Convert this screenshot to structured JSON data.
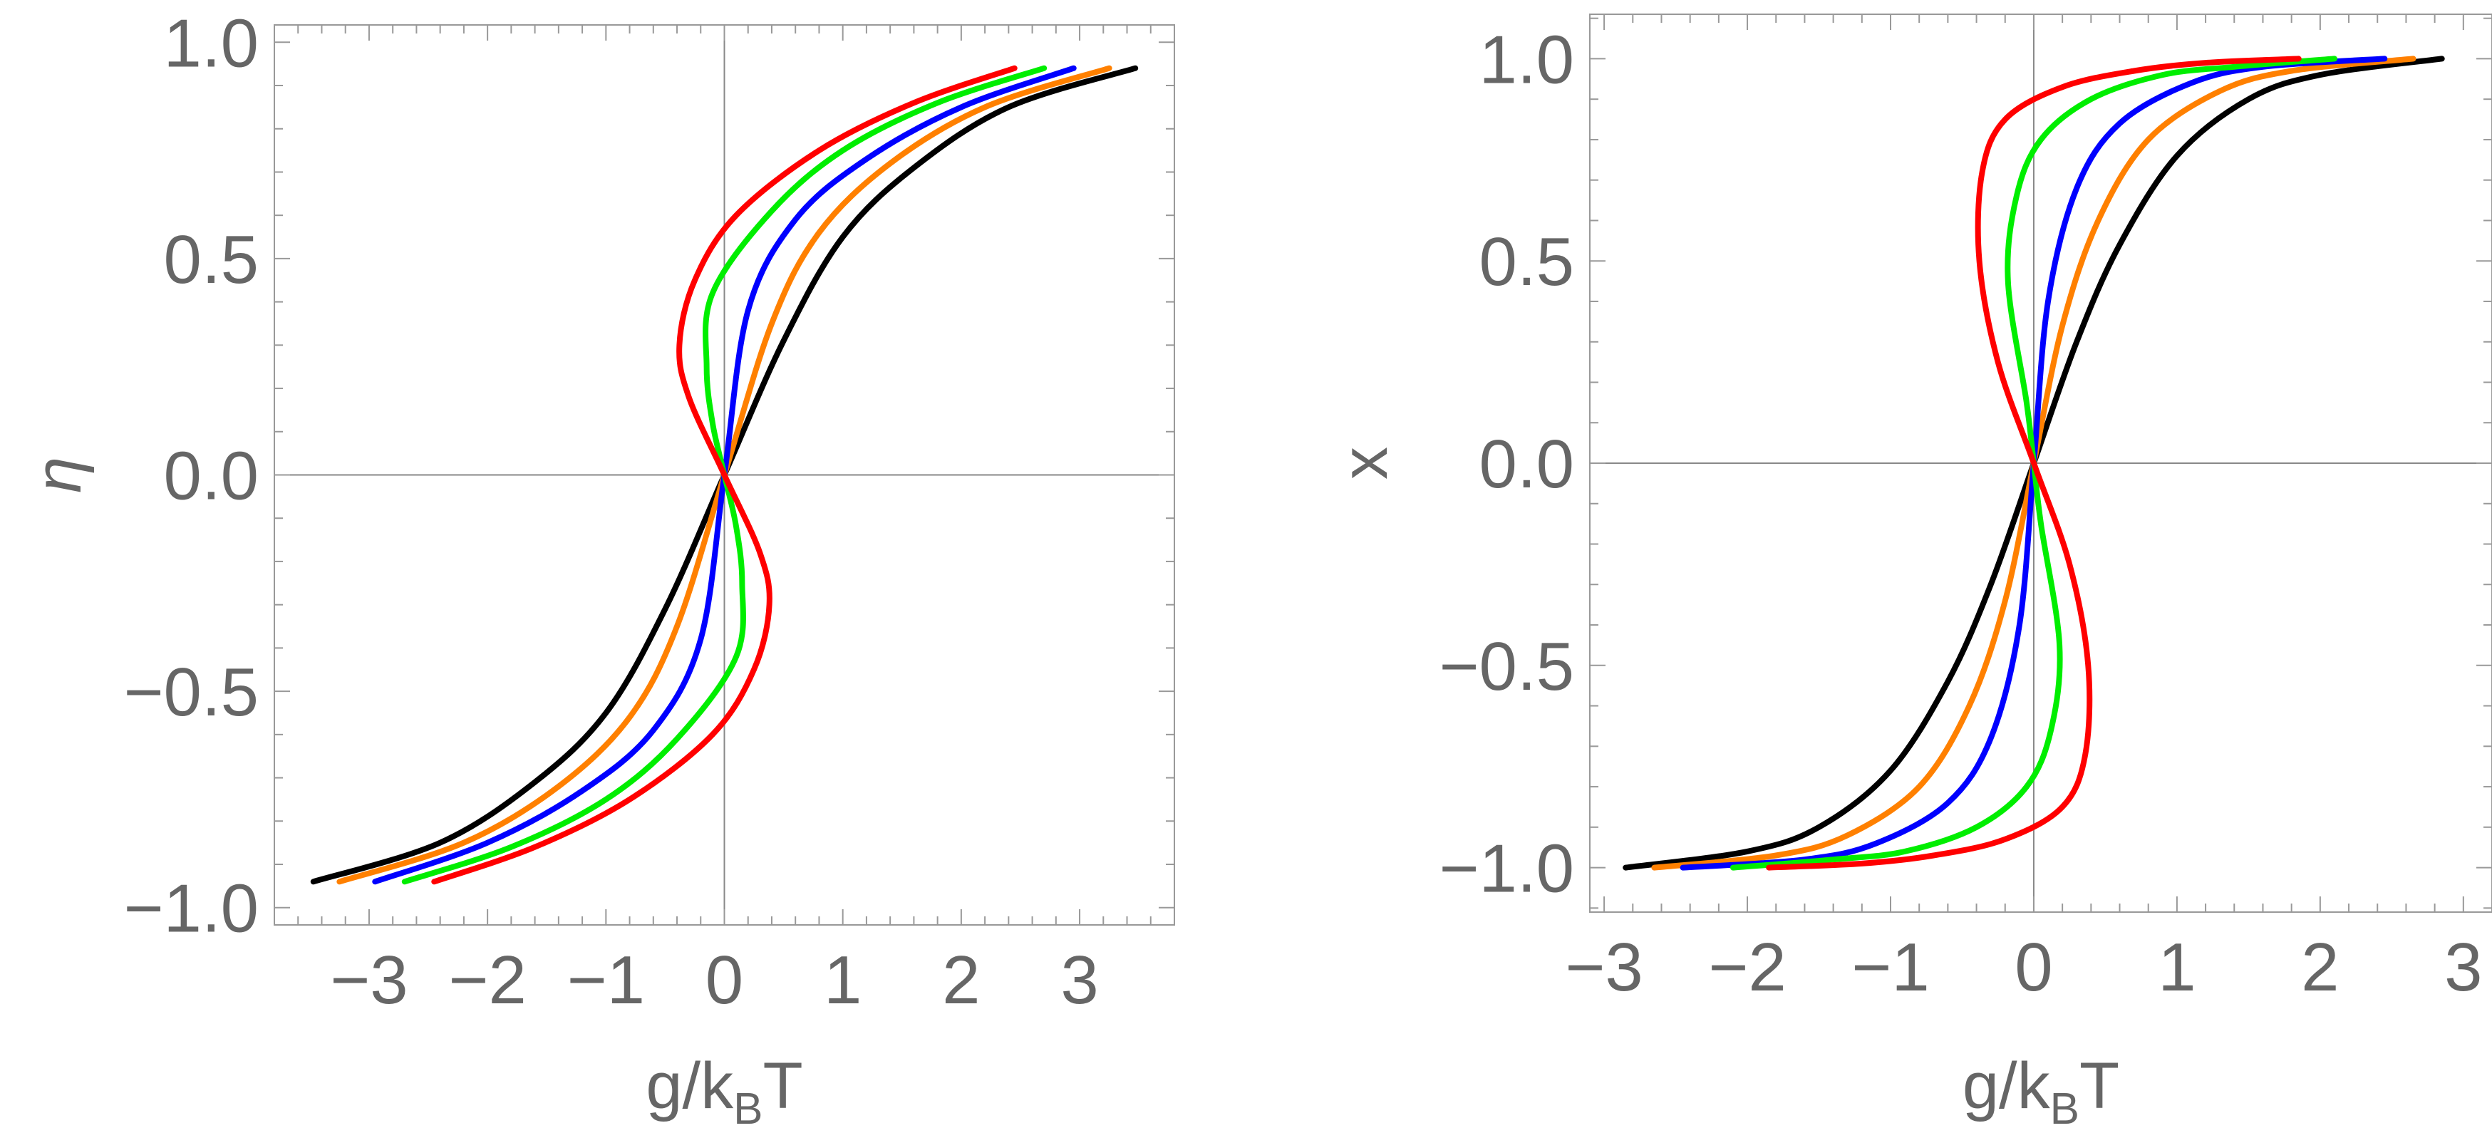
{
  "chart_data": [
    {
      "type": "line",
      "title": "",
      "xlabel": "g/k_BT",
      "ylabel": "η",
      "xlim": [
        -3.8,
        3.8
      ],
      "ylim": [
        -1.04,
        1.04
      ],
      "xticks": [
        "−3",
        "−2",
        "−1",
        "0",
        "1",
        "2",
        "3"
      ],
      "yticks": [
        "−1.0",
        "−0.5",
        "0.0",
        "0.5",
        "1.0"
      ],
      "grid": false,
      "legend": "none",
      "series": [
        {
          "color": "#000000",
          "x": [
            -3.47,
            -2.4,
            -1.6,
            -1.0,
            -0.5,
            0.0,
            0.5,
            1.0,
            1.6,
            2.4,
            3.47
          ],
          "y": [
            -0.94,
            -0.85,
            -0.71,
            -0.55,
            -0.31,
            0.0,
            0.31,
            0.55,
            0.71,
            0.85,
            0.94
          ]
        },
        {
          "color": "#ff8000",
          "x": [
            -3.25,
            -2.2,
            -1.4,
            -0.8,
            -0.4,
            0.0,
            0.4,
            0.8,
            1.4,
            2.2,
            3.25
          ],
          "y": [
            -0.94,
            -0.85,
            -0.72,
            -0.56,
            -0.35,
            0.0,
            0.35,
            0.56,
            0.72,
            0.85,
            0.94
          ]
        },
        {
          "color": "#0000ff",
          "x": [
            -2.95,
            -2.0,
            -1.2,
            -0.6,
            -0.2,
            0.0,
            0.2,
            0.6,
            1.2,
            2.0,
            2.95
          ],
          "y": [
            -0.94,
            -0.85,
            -0.73,
            -0.59,
            -0.38,
            0.0,
            0.38,
            0.59,
            0.73,
            0.85,
            0.94
          ]
        },
        {
          "color": "#00ee00",
          "x": [
            -2.7,
            -1.8,
            -1.0,
            -0.4,
            0.1,
            0.15,
            0.1,
            0.0,
            -0.1,
            -0.15,
            -0.1,
            0.4,
            1.0,
            1.8,
            2.7
          ],
          "y": [
            -0.94,
            -0.86,
            -0.75,
            -0.61,
            -0.42,
            -0.25,
            -0.12,
            0.0,
            0.12,
            0.25,
            0.42,
            0.61,
            0.75,
            0.86,
            0.94
          ]
        },
        {
          "color": "#ff0000",
          "x": [
            -2.45,
            -1.6,
            -0.8,
            -0.1,
            0.25,
            0.38,
            0.3,
            0.0,
            -0.3,
            -0.38,
            -0.25,
            0.1,
            0.8,
            1.6,
            2.45
          ],
          "y": [
            -0.94,
            -0.86,
            -0.75,
            -0.6,
            -0.45,
            -0.3,
            -0.18,
            0.0,
            0.18,
            0.3,
            0.45,
            0.6,
            0.75,
            0.86,
            0.94
          ]
        }
      ]
    },
    {
      "type": "line",
      "title": "",
      "xlabel": "g/k_BT",
      "ylabel": "x",
      "xlim": [
        -3.1,
        3.2
      ],
      "ylim": [
        -1.11,
        1.11
      ],
      "xticks": [
        "−3",
        "−2",
        "−1",
        "0",
        "1",
        "2",
        "3"
      ],
      "yticks": [
        "−1.0",
        "−0.5",
        "0.0",
        "0.5",
        "1.0"
      ],
      "grid": false,
      "legend": "none",
      "series": [
        {
          "color": "#000000",
          "x": [
            -2.85,
            -2.0,
            -1.5,
            -1.0,
            -0.6,
            -0.3,
            0.0,
            0.3,
            0.6,
            1.0,
            1.5,
            2.0,
            2.85
          ],
          "y": [
            -1.0,
            -0.96,
            -0.9,
            -0.76,
            -0.54,
            -0.3,
            0.0,
            0.3,
            0.54,
            0.76,
            0.9,
            0.96,
            1.0
          ]
        },
        {
          "color": "#ff8000",
          "x": [
            -2.65,
            -1.8,
            -1.3,
            -0.8,
            -0.45,
            -0.2,
            0.0,
            0.2,
            0.45,
            0.8,
            1.3,
            1.8,
            2.65
          ],
          "y": [
            -1.0,
            -0.97,
            -0.92,
            -0.8,
            -0.6,
            -0.34,
            0.0,
            0.34,
            0.6,
            0.8,
            0.92,
            0.97,
            1.0
          ]
        },
        {
          "color": "#0000ff",
          "x": [
            -2.45,
            -1.6,
            -1.1,
            -0.6,
            -0.3,
            -0.1,
            0.0,
            0.1,
            0.3,
            0.6,
            1.1,
            1.6,
            2.45
          ],
          "y": [
            -1.0,
            -0.98,
            -0.94,
            -0.84,
            -0.68,
            -0.4,
            0.0,
            0.4,
            0.68,
            0.84,
            0.94,
            0.98,
            1.0
          ]
        },
        {
          "color": "#00ee00",
          "x": [
            -2.1,
            -1.4,
            -0.9,
            -0.4,
            -0.05,
            0.12,
            0.18,
            0.05,
            0.0,
            -0.05,
            -0.18,
            -0.12,
            0.05,
            0.4,
            0.9,
            1.4,
            2.1
          ],
          "y": [
            -1.0,
            -0.98,
            -0.96,
            -0.9,
            -0.8,
            -0.66,
            -0.45,
            -0.15,
            0.0,
            0.15,
            0.45,
            0.66,
            0.8,
            0.9,
            0.96,
            0.98,
            1.0
          ]
        },
        {
          "color": "#ff0000",
          "x": [
            -1.85,
            -1.2,
            -0.7,
            -0.2,
            0.2,
            0.36,
            0.38,
            0.25,
            0.0,
            -0.25,
            -0.38,
            -0.36,
            -0.2,
            0.2,
            0.7,
            1.2,
            1.85
          ],
          "y": [
            -1.0,
            -0.99,
            -0.97,
            -0.93,
            -0.85,
            -0.72,
            -0.5,
            -0.25,
            0.0,
            0.25,
            0.5,
            0.72,
            0.85,
            0.93,
            0.97,
            0.99,
            1.0
          ]
        }
      ]
    }
  ]
}
